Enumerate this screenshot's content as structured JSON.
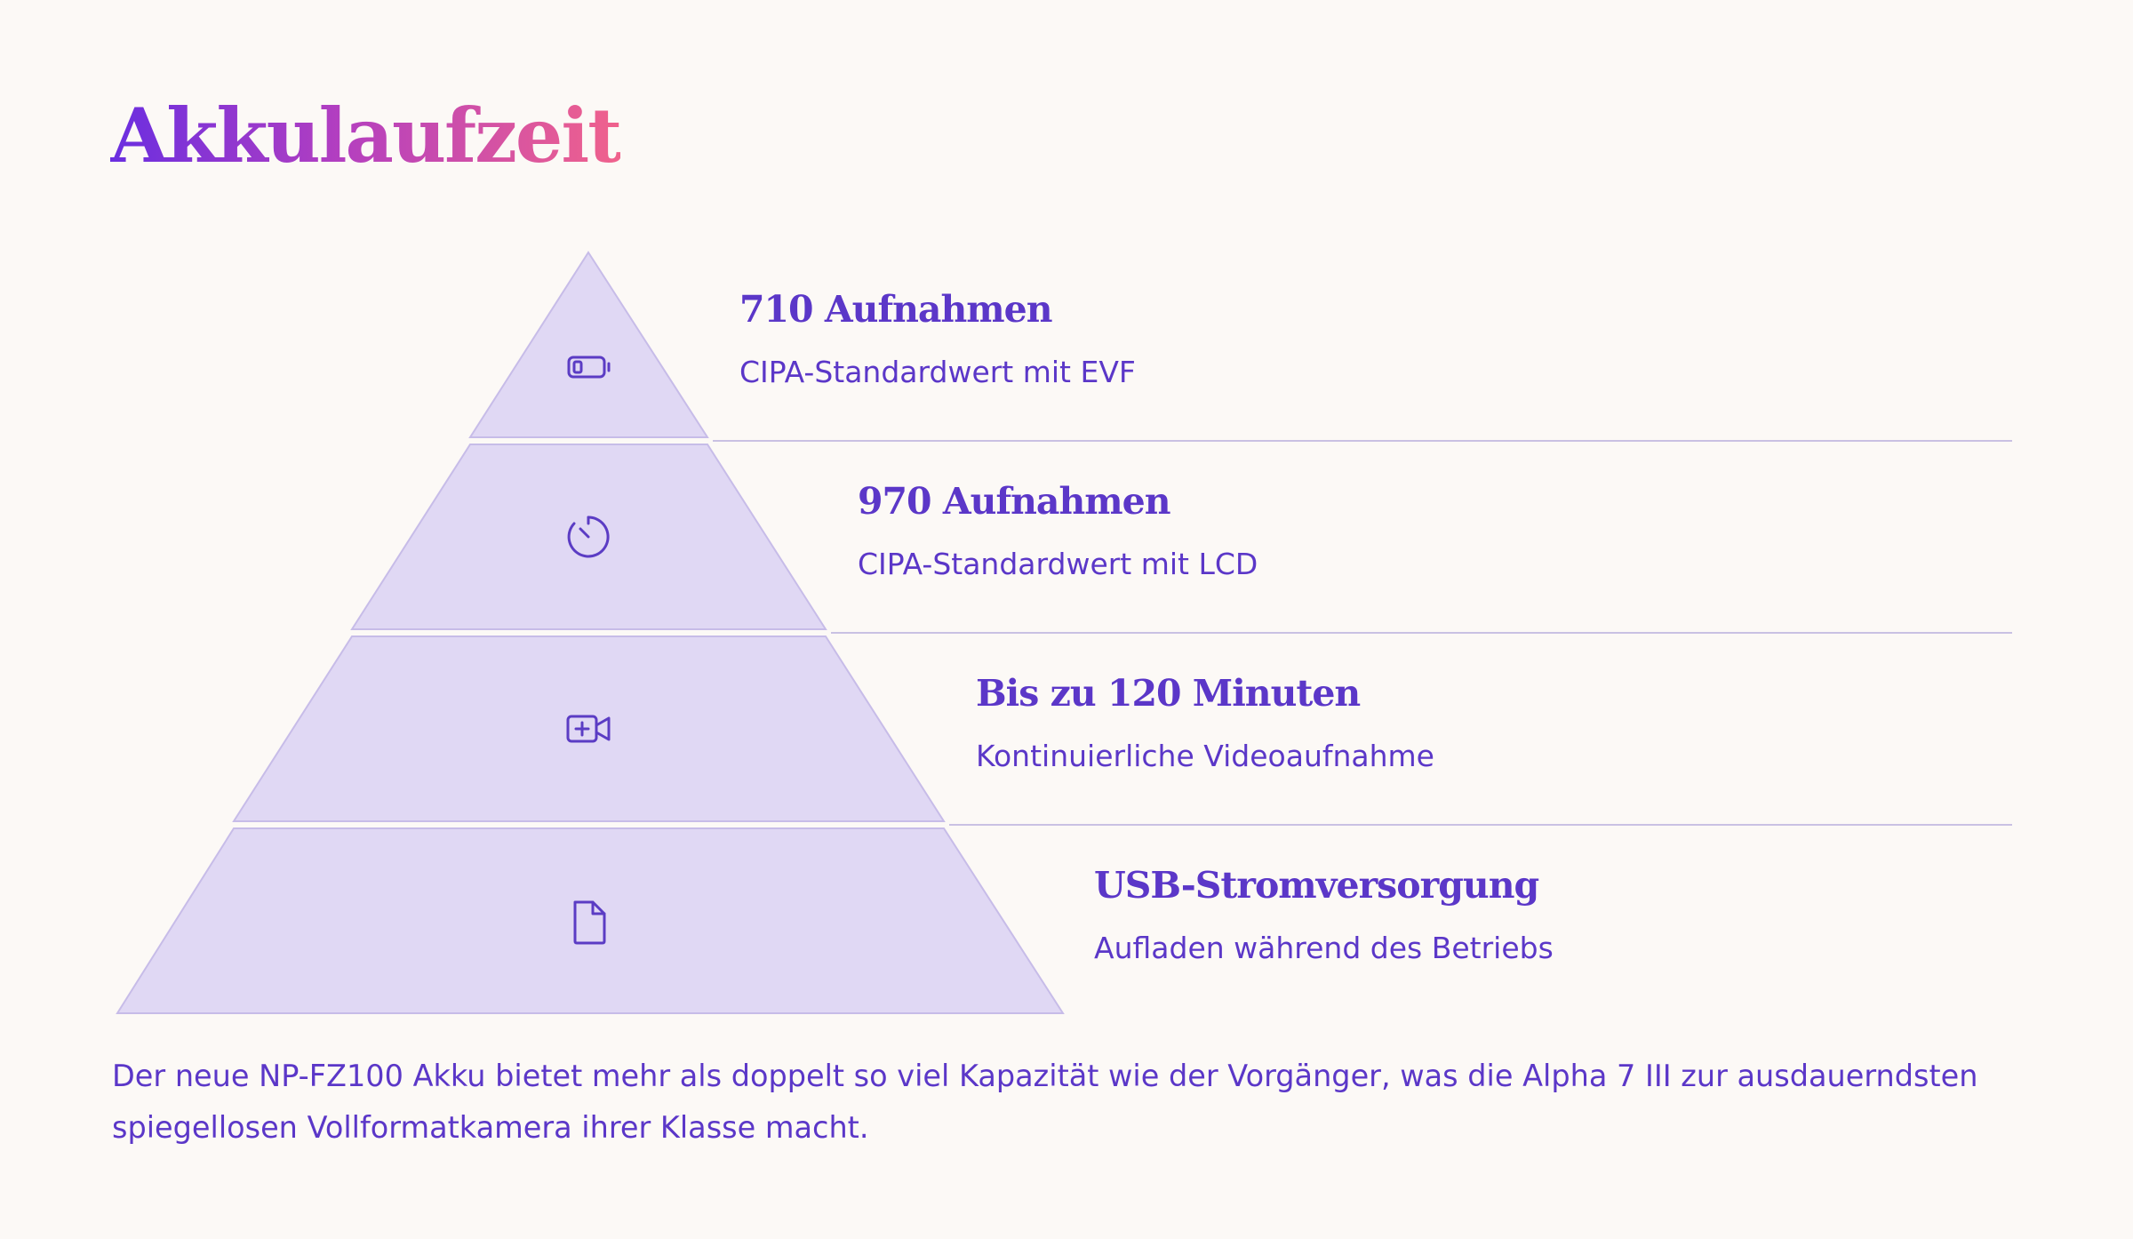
{
  "title": "Akkulaufzeit",
  "tiers": [
    {
      "icon": "battery-icon",
      "heading": "710 Aufnahmen",
      "sub": "CIPA-Standardwert mit EVF"
    },
    {
      "icon": "timer-icon",
      "heading": "970 Aufnahmen",
      "sub": "CIPA-Standardwert mit LCD"
    },
    {
      "icon": "video-plus-icon",
      "heading": "Bis zu 120 Minuten",
      "sub": "Kontinuierliche Videoaufnahme"
    },
    {
      "icon": "file-icon",
      "heading": "USB-Stromversorgung",
      "sub": "Aufladen während des Betriebs"
    }
  ],
  "caption": "Der neue NP-FZ100 Akku bietet mehr als doppelt so viel Kapazität wie der Vorgänger, was die Alpha 7 III zur ausdauerndsten spiegellosen Vollformatkamera ihrer Klasse macht.",
  "colors": {
    "background": "#fcf9f6",
    "tier_fill": "#e0d8f4",
    "text_accent": "#5b37c8",
    "title_gradient": [
      "#6a2ee0",
      "#f0628c"
    ]
  }
}
